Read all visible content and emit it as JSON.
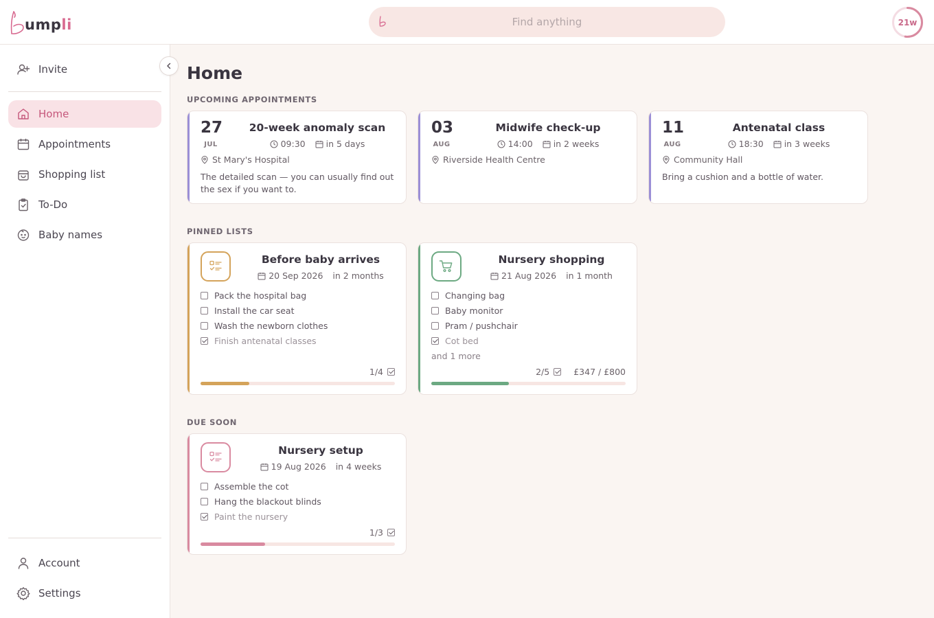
{
  "app": {
    "logo_main": "ump",
    "logo_accent": "li",
    "week_badge": "21w",
    "week_progress": 0.525
  },
  "search": {
    "placeholder": "Find anything"
  },
  "sidebar": {
    "invite": "Invite",
    "items": [
      {
        "label": "Home",
        "icon": "home-icon",
        "active": true
      },
      {
        "label": "Appointments",
        "icon": "calendar-icon"
      },
      {
        "label": "Shopping list",
        "icon": "shopping-bag-icon"
      },
      {
        "label": "To-Do",
        "icon": "clipboard-check-icon"
      },
      {
        "label": "Baby names",
        "icon": "baby-face-icon"
      }
    ],
    "account": "Account",
    "settings": "Settings"
  },
  "main": {
    "title": "Home",
    "sections": {
      "appointments": "UPCOMING APPOINTMENTS",
      "pinned": "PINNED LISTS",
      "due": "DUE SOON"
    },
    "appointments": [
      {
        "day": "27",
        "month": "JUL",
        "title": "20-week anomaly scan",
        "time": "09:30",
        "when": "in 5 days",
        "location": "St Mary's Hospital",
        "note": "The detailed scan — you can usually find out the sex if you want to."
      },
      {
        "day": "03",
        "month": "AUG",
        "title": "Midwife check-up",
        "time": "14:00",
        "when": "in 2 weeks",
        "location": "Riverside Health Centre",
        "note": ""
      },
      {
        "day": "11",
        "month": "AUG",
        "title": "Antenatal class",
        "time": "18:30",
        "when": "in 3 weeks",
        "location": "Community Hall",
        "note": "Bring a cushion and a bottle of water."
      }
    ],
    "pinned": [
      {
        "title": "Before baby arrives",
        "date": "20 Sep 2026",
        "relative": "in 2 months",
        "color": "#d4a35a",
        "items": [
          {
            "text": "Pack the hospital bag",
            "done": false
          },
          {
            "text": "Install the car seat",
            "done": false
          },
          {
            "text": "Wash the newborn clothes",
            "done": false
          },
          {
            "text": "Finish antenatal classes",
            "done": true
          }
        ],
        "more": "",
        "count": "1/4",
        "budget": "",
        "progress": 0.25
      },
      {
        "title": "Nursery shopping",
        "date": "21 Aug 2026",
        "relative": "in 1 month",
        "color": "#6ca982",
        "items": [
          {
            "text": "Changing bag",
            "done": false
          },
          {
            "text": "Baby monitor",
            "done": false
          },
          {
            "text": "Pram / pushchair",
            "done": false
          },
          {
            "text": "Cot bed",
            "done": true
          }
        ],
        "more": "and 1 more",
        "count": "2/5",
        "budget": "£347 / £800",
        "progress": 0.4
      }
    ],
    "due": [
      {
        "title": "Nursery setup",
        "date": "19 Aug 2026",
        "relative": "in 4 weeks",
        "color": "#d98aa0",
        "items": [
          {
            "text": "Assemble the cot",
            "done": false
          },
          {
            "text": "Hang the blackout blinds",
            "done": false
          },
          {
            "text": "Paint the nursery",
            "done": true
          }
        ],
        "count": "1/3",
        "progress": 0.333
      }
    ]
  },
  "colors": {
    "accent": "#d86a90",
    "appointment_bar": "#9b8fd6",
    "active_nav_bg": "#f9e2e6"
  }
}
